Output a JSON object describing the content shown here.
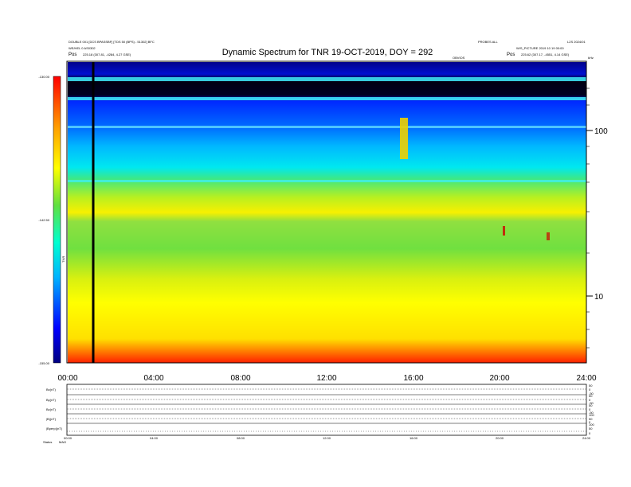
{
  "chart_data": [
    {
      "type": "heatmap",
      "title": "Dynamic Spectrum for TNR 19-OCT-2019, DOY = 292",
      "header": {
        "left_line1": "DOUBLE 001 [DCS BPASSBF] [TDS 50 (BPS) - 51302] BFC",
        "left_line2": "WE/HEL 0 AS0302",
        "left_line3_label": "Pos",
        "left_line3_value": "225.18 (307.81, -4284, 4.27 GSE)",
        "right_line1": "PROBES ALL",
        "right_line2": "W/S_PICTURE 2019 10 19 00:00",
        "right_line3_label": "Pos",
        "right_line3_value": "225.62 (307.17, -4551, 4.14 GSE)",
        "far_right_top": "L2S 2024/01",
        "mark_label": "OBVIOS",
        "freq_unit": "kHz",
        "colorbar_unit": "TNR"
      },
      "colorbar": {
        "min": -155.0,
        "max": -130.0,
        "mid": -142.5,
        "tick_labels": [
          "-130.00",
          "-142.50",
          "-155.00"
        ]
      },
      "x": {
        "range_hours": [
          0,
          24
        ],
        "tick_labels": [
          "00:00",
          "04:00",
          "08:00",
          "12:00",
          "16:00",
          "20:00",
          "24:00"
        ]
      },
      "y": {
        "scale": "log",
        "range_khz": [
          4,
          300
        ],
        "tick_labels": [
          "100",
          "10"
        ],
        "tick_values": [
          100,
          10
        ]
      },
      "features": {
        "black_line_hour": 1.2,
        "burst_hour": 15.7
      }
    },
    {
      "type": "line",
      "panels": [
        {
          "name": "Bx(nT)",
          "right": [
            "50",
            "0",
            "-50"
          ]
        },
        {
          "name": "By(nT)",
          "right": [
            "50",
            "0",
            "-50"
          ]
        },
        {
          "name": "Bz(nT)",
          "right": [
            "50",
            "0",
            "-50"
          ]
        },
        {
          "name": "|B|(nT)",
          "right": [
            "100",
            "50",
            "0"
          ]
        },
        {
          "name": "|Bperp|(nT)",
          "right": [
            "100",
            "50",
            "0"
          ]
        }
      ],
      "x_tick_labels": [
        "00:00",
        "04:00",
        "08:00",
        "12:00",
        "16:00",
        "20:00",
        "24:00"
      ],
      "footer_left": "Status",
      "footer_left2": "MAG"
    }
  ]
}
